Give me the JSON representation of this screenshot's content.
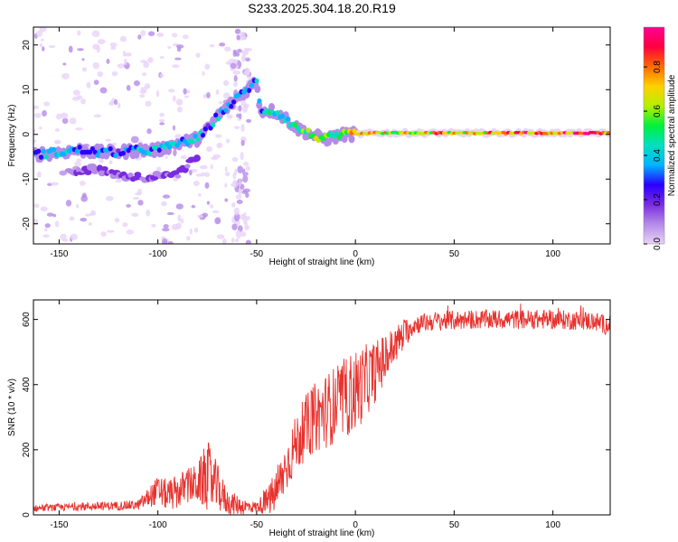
{
  "title": "S233.2025.304.18.20.R19",
  "chart_data": [
    {
      "type": "heatmap",
      "xlabel": "Height of straight line (km)",
      "ylabel": "Frequency (Hz)",
      "xlim": [
        -163,
        129
      ],
      "ylim": [
        -24.5,
        24
      ],
      "xticks": [
        -150,
        -100,
        -50,
        0,
        50,
        100
      ],
      "yticks": [
        -20,
        -10,
        0,
        10,
        20
      ],
      "colorbar": {
        "label": "Normalized spectral amplitude",
        "range": [
          0,
          0.98
        ],
        "ticks": [
          0.0,
          0.2,
          0.4,
          0.6,
          0.8
        ],
        "colors": [
          "#e9d3f7",
          "#b58be8",
          "#7a2be0",
          "#2a00ff",
          "#00b5ff",
          "#00e0c0",
          "#00f03c",
          "#b4f000",
          "#ffd000",
          "#ff6a00",
          "#ff0040",
          "#ff0090"
        ]
      },
      "ridge": {
        "x": [
          -163,
          -150,
          -140,
          -130,
          -120,
          -110,
          -100,
          -90,
          -80,
          -75,
          -70,
          -65,
          -60,
          -55,
          -50,
          -48,
          -45,
          -40,
          -35,
          -30,
          -25,
          -20,
          -15,
          -10,
          -5,
          0,
          10,
          20,
          40,
          60,
          80,
          100,
          129
        ],
        "y": [
          -4.5,
          -4,
          -3.5,
          -4,
          -4,
          -3.5,
          -3.5,
          -2,
          -1,
          1,
          4,
          6,
          8,
          10,
          12,
          5,
          5.5,
          5,
          3.5,
          1.5,
          0.5,
          -0.5,
          -1,
          -0.5,
          0,
          0,
          0.3,
          0.3,
          0.3,
          0.3,
          0.3,
          0.3,
          0.3
        ],
        "amplitude": [
          0.3,
          0.4,
          0.3,
          0.35,
          0.3,
          0.35,
          0.4,
          0.35,
          0.45,
          0.3,
          0.4,
          0.3,
          0.35,
          0.3,
          0.4,
          0.3,
          0.45,
          0.4,
          0.35,
          0.5,
          0.55,
          0.6,
          0.5,
          0.6,
          0.65,
          0.7,
          0.75,
          0.7,
          0.75,
          0.72,
          0.8,
          0.78,
          0.9
        ]
      },
      "lower_branch": {
        "x": [
          -145,
          -130,
          -120,
          -110,
          -100,
          -90,
          -85,
          -80
        ],
        "y": [
          -8,
          -8,
          -9,
          -9.5,
          -9.5,
          -9,
          -7,
          -5
        ]
      }
    },
    {
      "type": "line",
      "xlabel": "Height of straight line (km)",
      "ylabel": "SNR (10 * v/v)",
      "xlim": [
        -163,
        129
      ],
      "ylim": [
        0,
        660
      ],
      "xticks": [
        -150,
        -100,
        -50,
        0,
        50,
        100
      ],
      "yticks": [
        0,
        200,
        400,
        600
      ],
      "color": "#e8322e",
      "envelope": {
        "x": [
          -163,
          -140,
          -110,
          -100,
          -95,
          -90,
          -85,
          -80,
          -75,
          -70,
          -65,
          -60,
          -55,
          -50,
          -45,
          -40,
          -35,
          -30,
          -25,
          -20,
          -15,
          -10,
          -5,
          0,
          5,
          10,
          15,
          20,
          25,
          30,
          40,
          60,
          80,
          100,
          120,
          129
        ],
        "y": [
          20,
          25,
          30,
          75,
          60,
          70,
          90,
          95,
          120,
          85,
          40,
          30,
          25,
          25,
          40,
          70,
          150,
          220,
          270,
          300,
          320,
          340,
          360,
          380,
          410,
          440,
          480,
          520,
          560,
          585,
          595,
          600,
          600,
          600,
          595,
          580
        ]
      },
      "noise_amplitude": {
        "x": [
          -163,
          -110,
          -100,
          -80,
          -75,
          -65,
          -50,
          -40,
          -20,
          0,
          20,
          30,
          129
        ],
        "y": [
          10,
          15,
          45,
          60,
          110,
          40,
          15,
          70,
          110,
          130,
          60,
          30,
          30
        ]
      }
    }
  ]
}
